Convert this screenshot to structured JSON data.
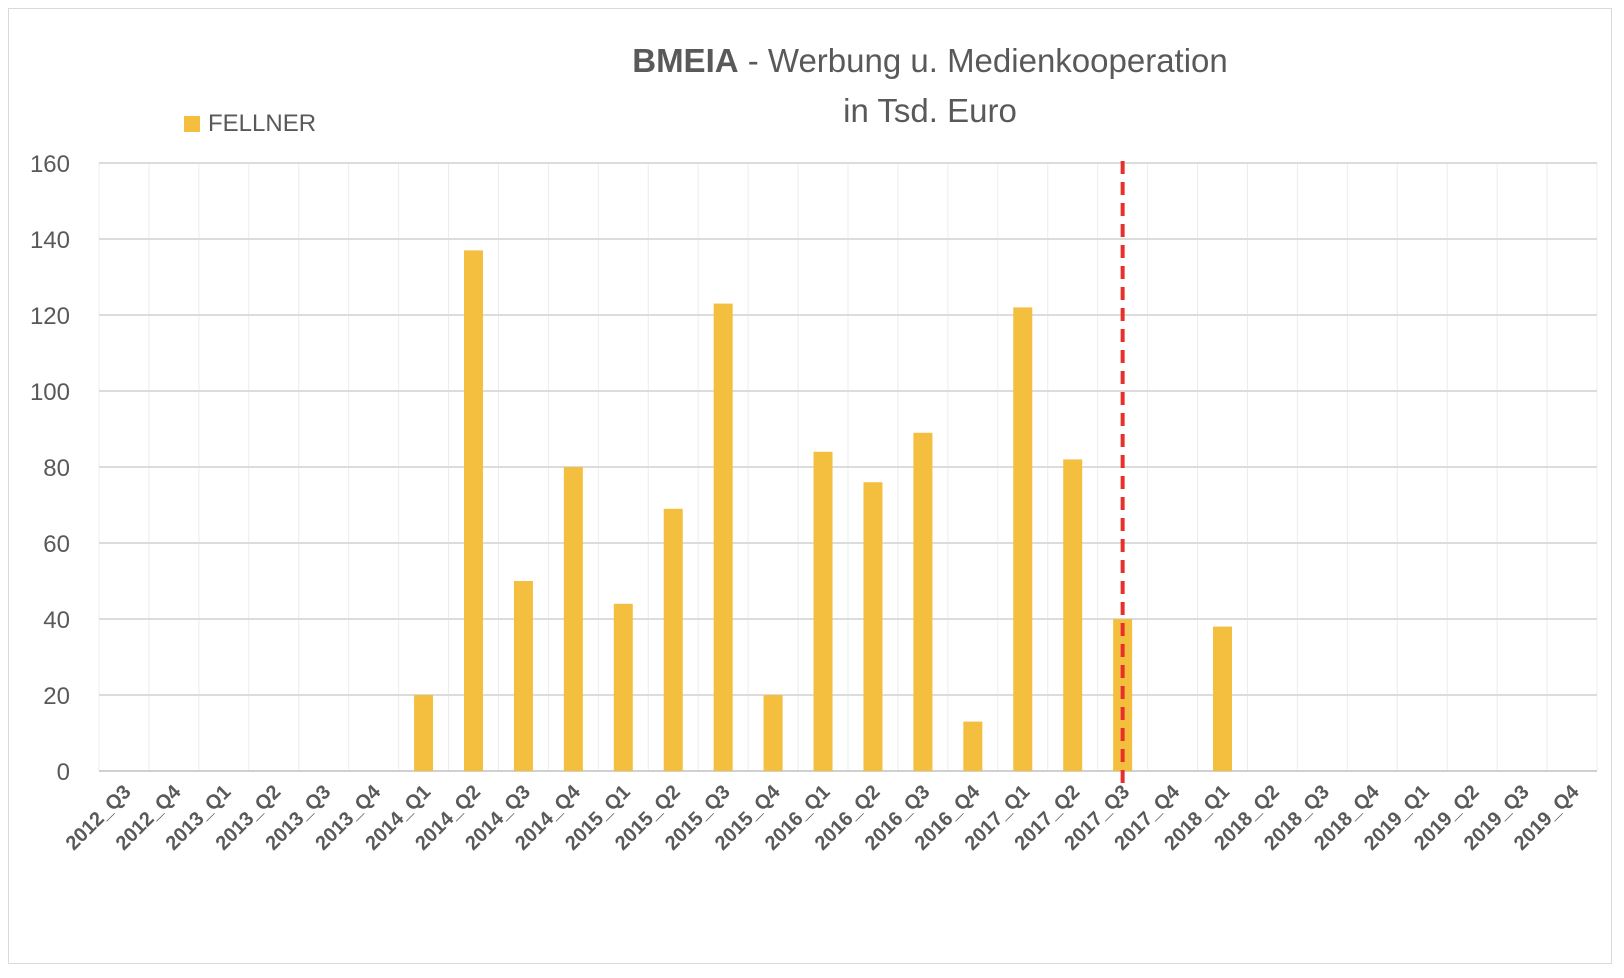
{
  "chart_data": {
    "type": "bar",
    "title_bold": "BMEIA",
    "title_rest": " - Werbung u. Medienkooperation",
    "title_line2": "in Tsd. Euro",
    "xlabel": "",
    "ylabel": "",
    "ylim": [
      0,
      160
    ],
    "yticks": [
      "0",
      "20",
      "40",
      "60",
      "80",
      "100",
      "120",
      "140",
      "160"
    ],
    "grid": true,
    "legend_position": "top-left",
    "categories": [
      "2012_Q3",
      "2012_Q4",
      "2013_Q1",
      "2013_Q2",
      "2013_Q3",
      "2013_Q4",
      "2014_Q1",
      "2014_Q2",
      "2014_Q3",
      "2014_Q4",
      "2015_Q1",
      "2015_Q2",
      "2015_Q3",
      "2015_Q4",
      "2016_Q1",
      "2016_Q2",
      "2016_Q3",
      "2016_Q4",
      "2017_Q1",
      "2017_Q2",
      "2017_Q3",
      "2017_Q4",
      "2018_Q1",
      "2018_Q2",
      "2018_Q3",
      "2018_Q4",
      "2019_Q1",
      "2019_Q2",
      "2019_Q3",
      "2019_Q4"
    ],
    "series": [
      {
        "name": "FELLNER",
        "color": "#f4bf3f",
        "values": [
          0,
          0,
          0,
          0,
          0,
          0,
          20,
          137,
          50,
          80,
          44,
          69,
          123,
          20,
          84,
          76,
          89,
          13,
          122,
          82,
          40,
          0,
          38,
          0,
          0,
          0,
          0,
          0,
          0,
          0
        ]
      }
    ],
    "reference_line": {
      "category": "2017_Q3",
      "style": "dashed",
      "color": "#e8302a"
    }
  }
}
